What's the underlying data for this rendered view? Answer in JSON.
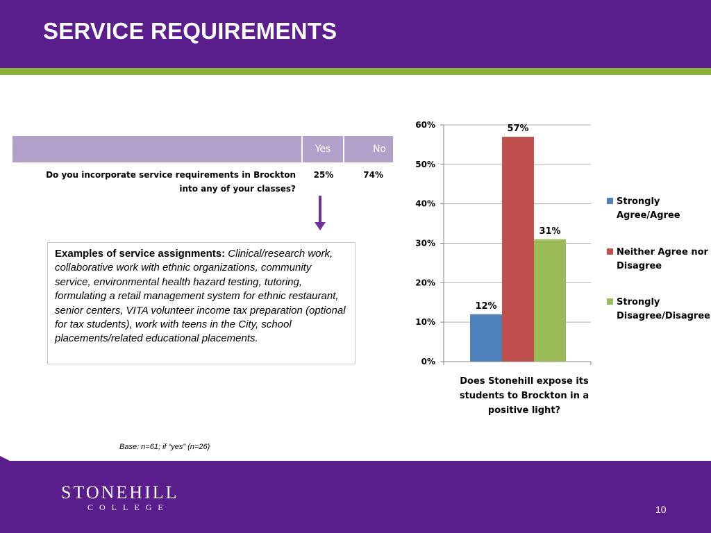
{
  "slide": {
    "title": "SERVICE REQUIREMENTS",
    "page_number": "10",
    "logo": {
      "name": "STONEHILL",
      "sub": "COLLEGE"
    },
    "base_note": "Base: n=61; if “yes” (n=26)"
  },
  "table": {
    "columns": [
      "Yes",
      "No"
    ],
    "rows": [
      {
        "question_line1": "Do you incorporate service requirements in Brockton",
        "question_line2": "into any of your classes?",
        "yes": "25%",
        "no": "74%"
      }
    ]
  },
  "examples": {
    "title": "Examples of service assignments:",
    "text": "Clinical/research work, collaborative work with ethnic organizations, community service, environmental health hazard testing, tutoring, formulating a retail management system for ethnic restaurant, senior centers, VITA volunteer income tax preparation (optional for tax students), work with teens in the City, school placements/related educational placements."
  },
  "chart_data": {
    "type": "bar",
    "categories": [
      "Does Stonehill expose its students to Brockton in a positive light?"
    ],
    "category_label_lines": [
      "Does Stonehill expose its",
      "students to Brockton in a",
      "positive light?"
    ],
    "series": [
      {
        "name": "Strongly Agree/Agree",
        "name_lines": [
          "Strongly",
          "Agree/Agree"
        ],
        "values": [
          12
        ],
        "label": "12%",
        "color": "#4f81bd"
      },
      {
        "name": "Neither Agree nor Disagree",
        "name_lines": [
          "Neither Agree nor",
          "Disagree"
        ],
        "values": [
          57
        ],
        "label": "57%",
        "color": "#c0504d"
      },
      {
        "name": "Strongly Disagree/Disagree",
        "name_lines": [
          "Strongly",
          "Disagree/Disagree"
        ],
        "values": [
          31
        ],
        "label": "31%",
        "color": "#9bbb59"
      }
    ],
    "y_ticks": [
      "0%",
      "10%",
      "20%",
      "30%",
      "40%",
      "50%",
      "60%"
    ],
    "ylim": [
      0,
      60
    ],
    "grid": true,
    "legend_position": "right"
  }
}
